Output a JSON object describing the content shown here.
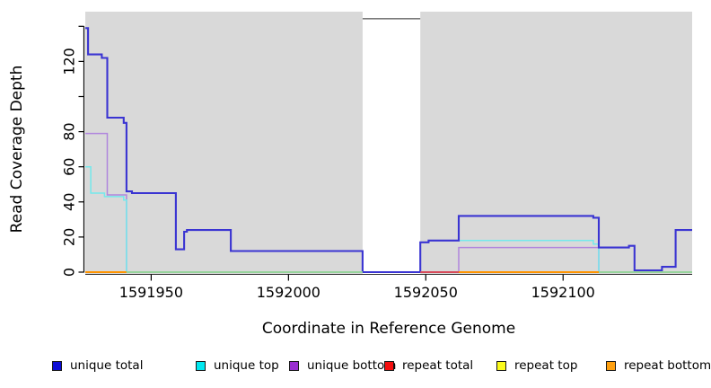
{
  "figure": {
    "bg": "#ffffff",
    "panel_bg": "#d9d9d9"
  },
  "y_axis": {
    "title": "Read Coverage Depth",
    "ticks": [
      {
        "v": 0,
        "label": "0"
      },
      {
        "v": 20,
        "label": "20"
      },
      {
        "v": 40,
        "label": "40"
      },
      {
        "v": 60,
        "label": "60"
      },
      {
        "v": 80,
        "label": "80"
      },
      {
        "v": 100,
        "label": ""
      },
      {
        "v": 120,
        "label": "120"
      },
      {
        "v": 140,
        "label": ""
      }
    ]
  },
  "x_axis": {
    "title": "Coordinate in Reference Genome",
    "ticks": [
      {
        "v": 1591950,
        "label": "1591950"
      },
      {
        "v": 1592000,
        "label": "1592000"
      },
      {
        "v": 1592050,
        "label": "1592050"
      },
      {
        "v": 1592100,
        "label": "1592100"
      }
    ]
  },
  "chart_data": {
    "type": "line",
    "step": true,
    "title": "",
    "xlabel": "Coordinate in Reference Genome",
    "ylabel": "Read Coverage Depth",
    "xlim": [
      1591926,
      1592147
    ],
    "ylim": [
      0,
      148
    ],
    "grid": false,
    "legend_position": "bottom",
    "panel_color": "#d9d9d9",
    "uncovered_gap": {
      "x0": 1592027,
      "x1": 1592048,
      "fill": "#ffffff",
      "top_line_color": "#7a7a7a"
    },
    "series": [
      {
        "name": "unique total",
        "line_color": "#3a34d2",
        "swatch_color": "#0d0dd6",
        "points": [
          [
            1591926,
            139
          ],
          [
            1591927,
            124
          ],
          [
            1591932,
            122
          ],
          [
            1591934,
            88
          ],
          [
            1591940,
            85
          ],
          [
            1591941,
            46
          ],
          [
            1591943,
            45
          ],
          [
            1591959,
            13
          ],
          [
            1591962,
            23
          ],
          [
            1591963,
            24
          ],
          [
            1591979,
            12
          ],
          [
            1592027,
            0
          ],
          [
            1592048,
            17
          ],
          [
            1592051,
            18
          ],
          [
            1592062,
            32
          ],
          [
            1592111,
            31
          ],
          [
            1592113,
            14
          ],
          [
            1592124,
            15
          ],
          [
            1592126,
            1
          ],
          [
            1592136,
            3
          ],
          [
            1592141,
            24
          ],
          [
            1592147,
            24
          ]
        ]
      },
      {
        "name": "unique top",
        "line_color": "#74e9ec",
        "swatch_color": "#00e8f0",
        "points": [
          [
            1591926,
            60
          ],
          [
            1591928,
            45
          ],
          [
            1591933,
            43
          ],
          [
            1591940,
            41
          ],
          [
            1591941,
            0
          ],
          [
            1592048,
            17
          ],
          [
            1592051,
            18
          ],
          [
            1592111,
            16
          ],
          [
            1592113,
            0
          ],
          [
            1592147,
            0
          ]
        ]
      },
      {
        "name": "unique bottom",
        "line_color": "#b086dd",
        "swatch_color": "#9a2fd1",
        "points": [
          [
            1591926,
            79
          ],
          [
            1591934,
            44
          ],
          [
            1591941,
            0
          ],
          [
            1592062,
            14
          ],
          [
            1592113,
            0
          ],
          [
            1592147,
            0
          ]
        ]
      },
      {
        "name": "repeat total",
        "line_color": "#d84a5a",
        "swatch_color": "#f50f0f",
        "points": [
          [
            1591926,
            0
          ],
          [
            1592147,
            0
          ]
        ]
      },
      {
        "name": "repeat top",
        "line_color": "#f5f53a",
        "swatch_color": "#fbfb1c",
        "points": [
          [
            1591926,
            0
          ],
          [
            1592147,
            0
          ]
        ]
      },
      {
        "name": "repeat bottom",
        "line_color": "#ff9400",
        "swatch_color": "#ffa010",
        "points": [
          [
            1591926,
            0
          ],
          [
            1592147,
            0
          ]
        ]
      }
    ],
    "zero_line_segments": [
      {
        "x0": 1591926,
        "x1": 1591941,
        "color": "#ff9400"
      },
      {
        "x0": 1591941,
        "x1": 1592027,
        "color": "#97d49c"
      },
      {
        "x0": 1592027,
        "x1": 1592048,
        "color": "#3a34d2"
      },
      {
        "x0": 1592048,
        "x1": 1592062,
        "color": "#d84a5a"
      },
      {
        "x0": 1592062,
        "x1": 1592113,
        "color": "#ff9400"
      },
      {
        "x0": 1592113,
        "x1": 1592147,
        "color": "#97d49c"
      }
    ]
  },
  "legend": {
    "items": [
      {
        "label": "unique total",
        "swatch": "#0d0dd6"
      },
      {
        "label": "unique top",
        "swatch": "#00e8f0"
      },
      {
        "label": "unique bottom",
        "swatch": "#9a2fd1"
      },
      {
        "label": "repeat total",
        "swatch": "#f50f0f"
      },
      {
        "label": "repeat top",
        "swatch": "#fbfb1c"
      },
      {
        "label": "repeat bottom",
        "swatch": "#ffa010"
      }
    ]
  }
}
